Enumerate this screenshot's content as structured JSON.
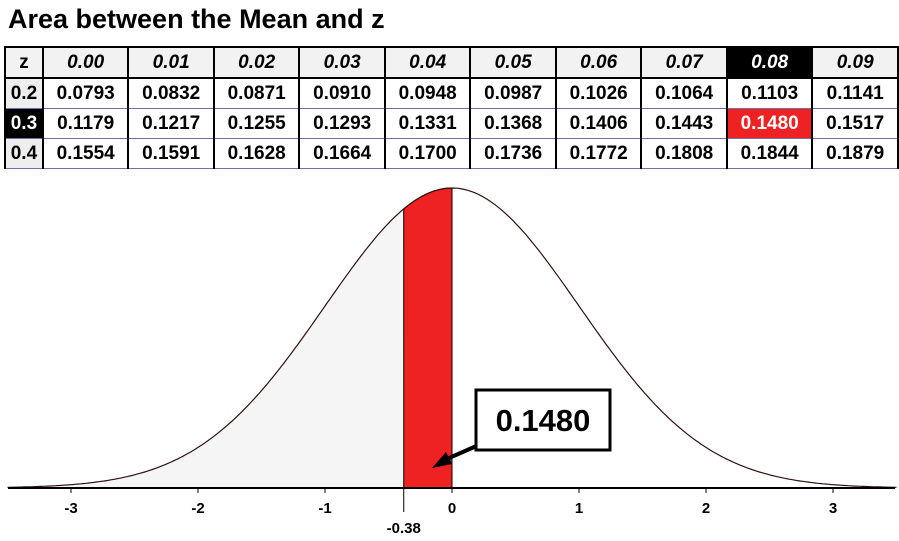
{
  "title": "Area between the Mean and z",
  "table": {
    "headers": [
      "z",
      "0.00",
      "0.01",
      "0.02",
      "0.03",
      "0.04",
      "0.05",
      "0.06",
      "0.07",
      "0.08",
      "0.09"
    ],
    "rows": [
      {
        "z": "0.2",
        "values": [
          "0.0793",
          "0.0832",
          "0.0871",
          "0.0910",
          "0.0948",
          "0.0987",
          "0.1026",
          "0.1064",
          "0.1103",
          "0.1141"
        ]
      },
      {
        "z": "0.3",
        "values": [
          "0.1179",
          "0.1217",
          "0.1255",
          "0.1293",
          "0.1331",
          "0.1368",
          "0.1406",
          "0.1443",
          "0.1480",
          "0.1517"
        ]
      },
      {
        "z": "0.4",
        "values": [
          "0.1554",
          "0.1591",
          "0.1628",
          "0.1664",
          "0.1700",
          "0.1736",
          "0.1772",
          "0.1808",
          "0.1844",
          "0.1879"
        ]
      }
    ],
    "highlight_col": "0.08",
    "highlight_row": "0.3",
    "highlight_value": "0.1480"
  },
  "chart_data": {
    "type": "area",
    "distribution": "standard normal",
    "xlim": [
      -3.5,
      3.5
    ],
    "ticks": [
      "-3",
      "-2",
      "-1",
      "0",
      "1",
      "2",
      "3"
    ],
    "shaded_from": -0.38,
    "shaded_to": 0,
    "shaded_label": "-0.38",
    "callout": "0.1480",
    "colors": {
      "shade": "#ee2222",
      "left_fill": "#f4f5f4"
    }
  }
}
